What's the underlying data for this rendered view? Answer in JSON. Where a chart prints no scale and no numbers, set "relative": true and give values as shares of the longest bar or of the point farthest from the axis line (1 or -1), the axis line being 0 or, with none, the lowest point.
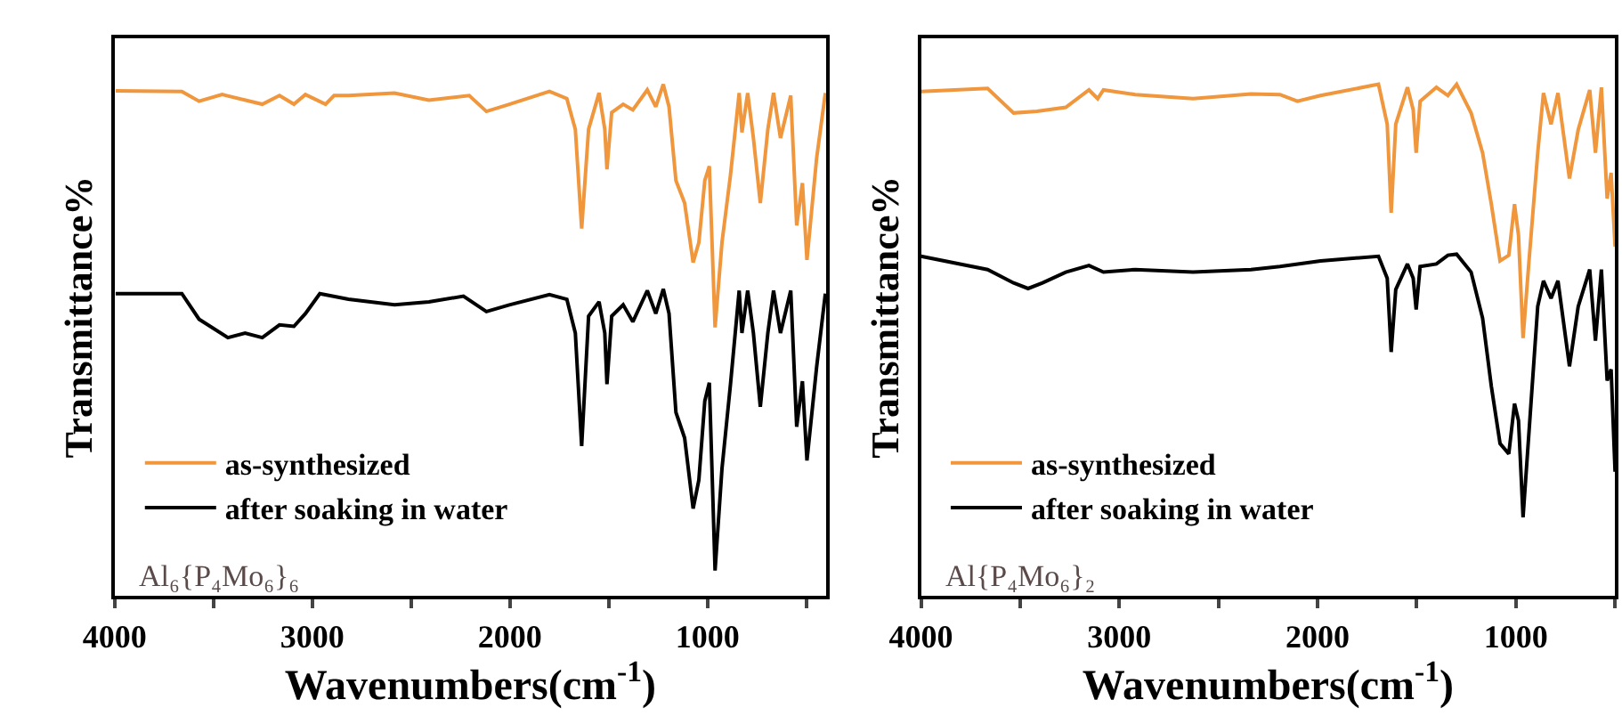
{
  "chart_data": [
    {
      "type": "line",
      "relative": true,
      "xlabel": "Wavenumbers(cm$^{-1}$)",
      "ylabel": "Transmittance%",
      "xlim": [
        4000,
        400
      ],
      "xticks": [
        4000,
        {
          "value": 3500,
          "label": null
        },
        3000,
        {
          "value": 2500,
          "label": null
        },
        2000,
        {
          "value": 1500,
          "label": null
        },
        1000,
        {
          "value": 500,
          "label": null
        }
      ],
      "legend": "bottom left",
      "annotations": [
        "Al₆{P₄Mo₆}₆"
      ],
      "series": [
        {
          "name": "as-synthesized",
          "color": "#f0963c",
          "x": [
            3995,
            3660,
            3573,
            3456,
            3253,
            3166,
            3093,
            3035,
            2933,
            2890,
            2817,
            2584,
            2410,
            2206,
            2119,
            2003,
            1800,
            1712,
            1669,
            1637,
            1602,
            1549,
            1520,
            1509,
            1485,
            1427,
            1378,
            1305,
            1262,
            1224,
            1195,
            1160,
            1116,
            1073,
            1044,
            1014,
            991,
            962,
            927,
            884,
            840,
            826,
            797,
            768,
            733,
            695,
            666,
            631,
            579,
            549,
            520,
            497,
            448,
            404
          ],
          "values": [
            0.987,
            0.986,
            0.967,
            0.98,
            0.961,
            0.978,
            0.961,
            0.98,
            0.961,
            0.978,
            0.978,
            0.983,
            0.969,
            0.978,
            0.947,
            0.961,
            0.986,
            0.972,
            0.912,
            0.718,
            0.912,
            0.983,
            0.912,
            0.834,
            0.945,
            0.961,
            0.95,
            0.989,
            0.956,
            1,
            0.956,
            0.812,
            0.768,
            0.652,
            0.691,
            0.812,
            0.84,
            0.525,
            0.691,
            0.823,
            0.983,
            0.906,
            0.983,
            0.895,
            0.768,
            0.912,
            0.983,
            0.895,
            0.978,
            0.724,
            0.807,
            0.657,
            0.856,
            0.983
          ]
        },
        {
          "name": "after soaking in water",
          "color": "#000000",
          "x": [
            3995,
            3660,
            3573,
            3427,
            3340,
            3253,
            3166,
            3093,
            3035,
            2962,
            2817,
            2584,
            2410,
            2235,
            2119,
            2003,
            1800,
            1712,
            1669,
            1637,
            1602,
            1549,
            1520,
            1509,
            1485,
            1427,
            1378,
            1305,
            1262,
            1224,
            1195,
            1160,
            1116,
            1073,
            1044,
            1014,
            991,
            962,
            927,
            884,
            840,
            826,
            797,
            768,
            733,
            695,
            666,
            631,
            579,
            549,
            520,
            497,
            448,
            404
          ],
          "values": [
            0.591,
            0.591,
            0.541,
            0.505,
            0.514,
            0.505,
            0.53,
            0.527,
            0.552,
            0.591,
            0.58,
            0.569,
            0.575,
            0.586,
            0.556,
            0.569,
            0.589,
            0.58,
            0.514,
            0.293,
            0.547,
            0.575,
            0.514,
            0.414,
            0.547,
            0.569,
            0.536,
            0.597,
            0.552,
            0.6,
            0.552,
            0.359,
            0.309,
            0.171,
            0.227,
            0.381,
            0.417,
            0.05,
            0.249,
            0.414,
            0.597,
            0.514,
            0.597,
            0.514,
            0.37,
            0.514,
            0.597,
            0.514,
            0.597,
            0.331,
            0.42,
            0.265,
            0.448,
            0.591
          ]
        }
      ]
    },
    {
      "type": "line",
      "relative": true,
      "xlabel": "Wavenumbers(cm$^{-1}$)",
      "ylabel": "Transmittance%",
      "xlim": [
        4000,
        500
      ],
      "xticks": [
        4000,
        {
          "value": 3500,
          "label": null
        },
        3000,
        {
          "value": 2500,
          "label": null
        },
        2000,
        {
          "value": 1500,
          "label": null
        },
        1000,
        {
          "value": 500,
          "label": null
        }
      ],
      "legend": "bottom left",
      "annotations": [
        "Al{P₄Mo₆}₂"
      ],
      "series": [
        {
          "name": "as-synthesized",
          "color": "#f0963c",
          "x": [
            4000,
            3664,
            3533,
            3416,
            3270,
            3153,
            3109,
            3080,
            2920,
            2628,
            2336,
            2190,
            2102,
            1985,
            1693,
            1649,
            1629,
            1606,
            1547,
            1518,
            1503,
            1483,
            1401,
            1343,
            1299,
            1226,
            1168,
            1124,
            1080,
            1036,
            1007,
            987,
            964,
            934,
            890,
            861,
            823,
            788,
            730,
            686,
            628,
            599,
            569,
            540,
            520,
            500
          ],
          "values": [
            0.986,
            0.992,
            0.944,
            0.947,
            0.955,
            0.989,
            0.972,
            0.989,
            0.98,
            0.972,
            0.981,
            0.98,
            0.967,
            0.978,
            1,
            0.922,
            0.749,
            0.922,
            0.994,
            0.95,
            0.866,
            0.967,
            0.994,
            0.978,
            1,
            0.944,
            0.866,
            0.766,
            0.655,
            0.666,
            0.766,
            0.705,
            0.504,
            0.655,
            0.866,
            0.983,
            0.922,
            0.983,
            0.816,
            0.911,
            0.989,
            0.866,
            0.994,
            0.777,
            0.827,
            0.683
          ]
        },
        {
          "name": "after soaking in water",
          "color": "#000000",
          "x": [
            4000,
            3664,
            3533,
            3460,
            3387,
            3270,
            3153,
            3080,
            2920,
            2628,
            2336,
            2190,
            1985,
            1693,
            1649,
            1629,
            1606,
            1547,
            1518,
            1503,
            1483,
            1401,
            1343,
            1299,
            1226,
            1168,
            1124,
            1080,
            1036,
            1007,
            987,
            964,
            934,
            890,
            861,
            823,
            788,
            730,
            686,
            628,
            599,
            569,
            540,
            520,
            500
          ],
          "values": [
            0.664,
            0.638,
            0.612,
            0.601,
            0.612,
            0.633,
            0.646,
            0.633,
            0.638,
            0.633,
            0.638,
            0.644,
            0.655,
            0.664,
            0.621,
            0.477,
            0.599,
            0.649,
            0.621,
            0.56,
            0.644,
            0.649,
            0.666,
            0.668,
            0.633,
            0.543,
            0.41,
            0.298,
            0.278,
            0.376,
            0.343,
            0.154,
            0.321,
            0.566,
            0.616,
            0.582,
            0.616,
            0.449,
            0.566,
            0.638,
            0.499,
            0.638,
            0.421,
            0.443,
            0.243
          ]
        }
      ]
    }
  ]
}
